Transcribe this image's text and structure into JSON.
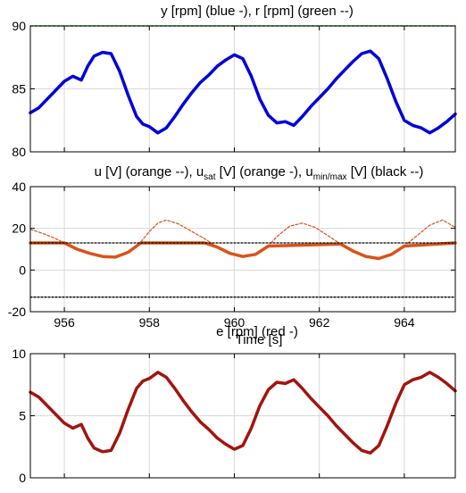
{
  "figure": {
    "colors": {
      "blue": "#0000dd",
      "green": "#00aa00",
      "orange": "#d95319",
      "black": "#000000",
      "red": "#a2140e",
      "grid": "#d9d9d9"
    }
  },
  "chart_data": [
    {
      "type": "line",
      "title": "y [rpm] (blue -), r [rpm] (green --)",
      "title_parts": {
        "text": "y [rpm] (blue -), r [rpm] (green --)"
      },
      "xlabel": "",
      "ylabel": "",
      "xlim": [
        955.2,
        965.2
      ],
      "ylim": [
        80,
        90
      ],
      "yticks": [
        80,
        85,
        90
      ],
      "ytick_labels": [
        "80",
        "85",
        "90"
      ],
      "xticks": [
        956,
        958,
        960,
        962,
        964
      ],
      "xtick_labels": [],
      "grid": true,
      "series": [
        {
          "name": "y [rpm]",
          "color": "#0000dd",
          "style": "solid",
          "x": [
            955.2,
            955.4,
            955.6,
            955.8,
            956.0,
            956.2,
            956.4,
            956.55,
            956.7,
            956.9,
            957.1,
            957.3,
            957.5,
            957.7,
            957.85,
            958.0,
            958.2,
            958.4,
            958.6,
            958.8,
            959.0,
            959.2,
            959.4,
            959.6,
            959.8,
            960.0,
            960.2,
            960.4,
            960.6,
            960.8,
            961.0,
            961.2,
            961.4,
            961.6,
            961.8,
            962.0,
            962.2,
            962.4,
            962.6,
            962.8,
            963.0,
            963.2,
            963.4,
            963.6,
            963.8,
            964.0,
            964.2,
            964.4,
            964.6,
            964.8,
            965.0,
            965.2
          ],
          "y": [
            83.1,
            83.5,
            84.2,
            84.9,
            85.6,
            86.0,
            85.7,
            86.8,
            87.6,
            87.9,
            87.8,
            86.4,
            84.5,
            82.8,
            82.2,
            82.0,
            81.5,
            81.9,
            82.8,
            83.8,
            84.7,
            85.5,
            86.1,
            86.8,
            87.3,
            87.7,
            87.4,
            86.0,
            84.2,
            82.9,
            82.3,
            82.4,
            82.1,
            82.8,
            83.6,
            84.3,
            85.0,
            85.8,
            86.5,
            87.2,
            87.8,
            88.0,
            87.4,
            85.8,
            84.0,
            82.5,
            82.1,
            81.9,
            81.5,
            81.9,
            82.4,
            83.0
          ]
        },
        {
          "name": "r [rpm]",
          "color": "#00aa00",
          "style": "dashed",
          "x": [
            955.2,
            965.2
          ],
          "y": [
            90,
            90
          ]
        }
      ]
    },
    {
      "type": "line",
      "title": "u [V] (orange --), u_sat [V] (orange -), u_min/max [V] (black --)",
      "title_parts": {
        "p1": "u [V] (orange --), u",
        "sub1": "sat",
        "p2": " [V] (orange -), u",
        "sub2": "min/max",
        "p3": " [V] (black --)"
      },
      "xlabel": "Time [s]",
      "ylabel": "",
      "xlim": [
        955.2,
        965.2
      ],
      "ylim": [
        -20,
        40
      ],
      "yticks": [
        -20,
        0,
        20,
        40
      ],
      "ytick_labels": [
        "-20",
        "0",
        "20",
        "40"
      ],
      "xticks": [
        956,
        958,
        960,
        962,
        964
      ],
      "xtick_labels": [
        "956",
        "958",
        "960",
        "962",
        "964"
      ],
      "grid": true,
      "series": [
        {
          "name": "u [V]",
          "color": "#d95319",
          "style": "dashed",
          "x": [
            955.2,
            955.5,
            955.8,
            956.0,
            956.3,
            956.6,
            956.9,
            957.2,
            957.5,
            957.8,
            958.0,
            958.2,
            958.4,
            958.7,
            959.0,
            959.3,
            959.6,
            959.9,
            960.2,
            960.5,
            960.8,
            961.0,
            961.3,
            961.6,
            961.9,
            962.2,
            962.5,
            962.8,
            963.1,
            963.4,
            963.7,
            964.0,
            964.3,
            964.6,
            964.9,
            965.2
          ],
          "y": [
            19.5,
            17.5,
            15.0,
            13.0,
            10.0,
            8.0,
            6.5,
            6.2,
            8.5,
            13.5,
            18.5,
            22.5,
            24.0,
            22.0,
            18.5,
            15.0,
            11.0,
            8.0,
            6.5,
            7.5,
            11.5,
            16.0,
            21.0,
            22.5,
            20.5,
            16.5,
            12.5,
            9.0,
            6.5,
            5.5,
            7.5,
            11.5,
            16.5,
            21.5,
            24.0,
            20.5
          ]
        },
        {
          "name": "u_sat [V]",
          "color": "#d95319",
          "style": "solid",
          "x": [
            955.2,
            956.0,
            956.3,
            956.6,
            956.9,
            957.2,
            957.5,
            957.8,
            959.3,
            959.6,
            959.9,
            960.2,
            960.5,
            960.8,
            962.5,
            962.8,
            963.1,
            963.4,
            963.7,
            964.0,
            965.2
          ],
          "y": [
            13.0,
            13.0,
            10.0,
            8.0,
            6.5,
            6.2,
            8.5,
            13.0,
            13.0,
            11.0,
            8.0,
            6.5,
            7.5,
            11.5,
            12.5,
            9.0,
            6.5,
            5.5,
            7.5,
            11.5,
            13.0
          ]
        },
        {
          "name": "u_max [V]",
          "color": "#000000",
          "style": "dotted",
          "x": [
            955.2,
            965.2
          ],
          "y": [
            13,
            13
          ]
        },
        {
          "name": "u_min [V]",
          "color": "#000000",
          "style": "dotted",
          "x": [
            955.2,
            965.2
          ],
          "y": [
            -13,
            -13
          ]
        }
      ]
    },
    {
      "type": "line",
      "title": "e [rpm] (red -)",
      "title_parts": {
        "text": "e [rpm] (red -)"
      },
      "xlabel": "",
      "ylabel": "",
      "xlim": [
        955.2,
        965.2
      ],
      "ylim": [
        0,
        10
      ],
      "yticks": [
        0,
        5,
        10
      ],
      "ytick_labels": [
        "0",
        "5",
        "10"
      ],
      "xticks": [
        956,
        958,
        960,
        962,
        964
      ],
      "xtick_labels": [],
      "grid": true,
      "series": [
        {
          "name": "e [rpm]",
          "color": "#a2140e",
          "style": "solid",
          "x": [
            955.2,
            955.4,
            955.6,
            955.8,
            956.0,
            956.2,
            956.4,
            956.55,
            956.7,
            956.9,
            957.1,
            957.3,
            957.5,
            957.7,
            957.85,
            958.0,
            958.2,
            958.4,
            958.6,
            958.8,
            959.0,
            959.2,
            959.4,
            959.6,
            959.8,
            960.0,
            960.2,
            960.4,
            960.6,
            960.8,
            961.0,
            961.2,
            961.4,
            961.6,
            961.8,
            962.0,
            962.2,
            962.4,
            962.6,
            962.8,
            963.0,
            963.2,
            963.4,
            963.6,
            963.8,
            964.0,
            964.2,
            964.4,
            964.6,
            964.8,
            965.0,
            965.2
          ],
          "y": [
            6.9,
            6.5,
            5.8,
            5.1,
            4.4,
            4.0,
            4.3,
            3.2,
            2.4,
            2.1,
            2.2,
            3.6,
            5.5,
            7.2,
            7.8,
            8.0,
            8.5,
            8.1,
            7.2,
            6.2,
            5.3,
            4.5,
            3.9,
            3.2,
            2.7,
            2.3,
            2.6,
            4.0,
            5.8,
            7.1,
            7.7,
            7.6,
            7.9,
            7.2,
            6.4,
            5.7,
            5.0,
            4.2,
            3.5,
            2.8,
            2.2,
            2.0,
            2.6,
            4.2,
            6.0,
            7.5,
            7.9,
            8.1,
            8.5,
            8.1,
            7.6,
            7.0
          ]
        }
      ]
    }
  ]
}
